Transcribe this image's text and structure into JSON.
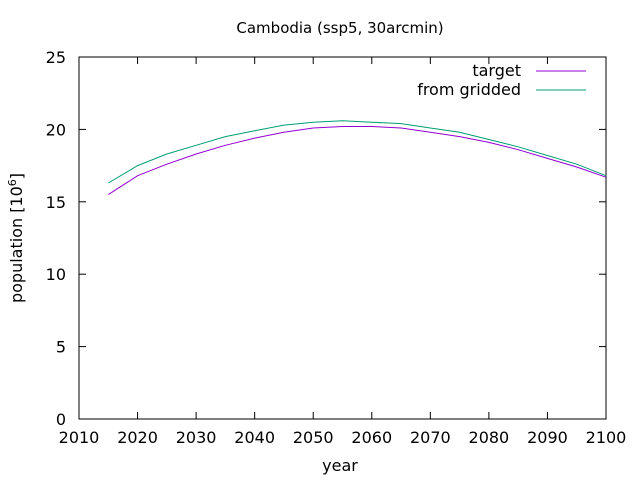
{
  "chart_data": {
    "type": "line",
    "title": "Cambodia (ssp5, 30arcmin)",
    "xlabel": "year",
    "ylabel_base": "population [10",
    "ylabel_exp": "6",
    "ylabel_close": "]",
    "xlim": [
      2010,
      2100
    ],
    "ylim": [
      0,
      25
    ],
    "xticks": [
      2010,
      2020,
      2030,
      2040,
      2050,
      2060,
      2070,
      2080,
      2090,
      2100
    ],
    "yticks": [
      0,
      5,
      10,
      15,
      20,
      25
    ],
    "grid": false,
    "legend_position": "top-right",
    "x": [
      2015,
      2020,
      2025,
      2030,
      2035,
      2040,
      2045,
      2050,
      2055,
      2060,
      2065,
      2070,
      2075,
      2080,
      2085,
      2090,
      2095,
      2100
    ],
    "series": [
      {
        "name": "target",
        "color": "#9400d3",
        "values": [
          15.5,
          16.8,
          17.6,
          18.3,
          18.9,
          19.4,
          19.8,
          20.1,
          20.2,
          20.2,
          20.1,
          19.8,
          19.5,
          19.1,
          18.6,
          18.0,
          17.4,
          16.7
        ]
      },
      {
        "name": "from gridded",
        "color": "#009e73",
        "values": [
          16.3,
          17.5,
          18.3,
          18.9,
          19.5,
          19.9,
          20.3,
          20.5,
          20.6,
          20.5,
          20.4,
          20.1,
          19.8,
          19.3,
          18.8,
          18.2,
          17.6,
          16.8
        ]
      }
    ]
  }
}
